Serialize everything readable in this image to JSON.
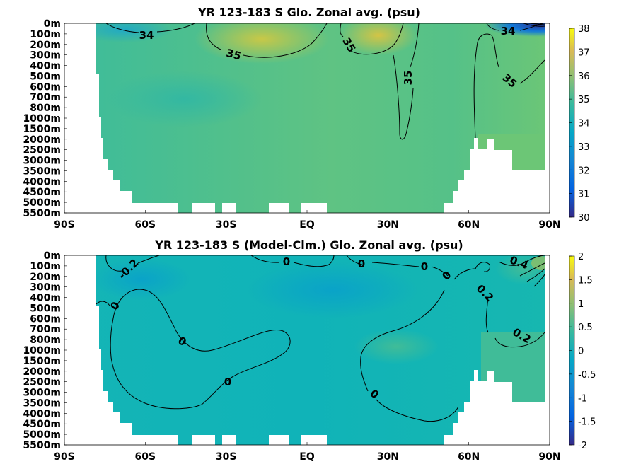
{
  "chart_data": [
    {
      "type": "heatmap",
      "title": "YR 123-183 S Glo. Zonal avg. (psu)",
      "x_ticks": [
        "90S",
        "60S",
        "30S",
        "EQ",
        "30N",
        "60N",
        "90N"
      ],
      "x_values": [
        -90,
        -60,
        -30,
        0,
        30,
        60,
        90
      ],
      "y_ticks": [
        "0m",
        "100m",
        "200m",
        "300m",
        "400m",
        "500m",
        "600m",
        "700m",
        "800m",
        "1000m",
        "1500m",
        "2000m",
        "2500m",
        "3000m",
        "3500m",
        "4000m",
        "4500m",
        "5000m",
        "5500m"
      ],
      "colorbar": {
        "min": 30,
        "max": 38,
        "ticks": [
          "30",
          "31",
          "32",
          "33",
          "34",
          "35",
          "36",
          "37",
          "38"
        ]
      },
      "contour_labels": [
        "34",
        "35",
        "35",
        "35",
        "34",
        "35"
      ],
      "grid": false
    },
    {
      "type": "heatmap",
      "title": "YR 123-183 S (Model-Clm.) Glo. Zonal avg. (psu)",
      "x_ticks": [
        "90S",
        "60S",
        "30S",
        "EQ",
        "30N",
        "60N",
        "90N"
      ],
      "x_values": [
        -90,
        -60,
        -30,
        0,
        30,
        60,
        90
      ],
      "y_ticks": [
        "0m",
        "100m",
        "200m",
        "300m",
        "400m",
        "500m",
        "600m",
        "700m",
        "800m",
        "1000m",
        "1500m",
        "2000m",
        "2500m",
        "3000m",
        "3500m",
        "4000m",
        "4500m",
        "5000m",
        "5500m"
      ],
      "colorbar": {
        "min": -2,
        "max": 2,
        "ticks": [
          "2",
          "1.5",
          "1",
          "0.5",
          "0",
          "-0.5",
          "-1",
          "-1.5",
          "-2"
        ]
      },
      "contour_labels": [
        "-0.2",
        "0",
        "0",
        "0",
        "0",
        "0",
        "0",
        "0",
        "0",
        "0.2",
        "0.2",
        "0.4"
      ],
      "grid": false
    }
  ],
  "colors": {
    "parula_dark": "#352a87",
    "parula_blue": "#0f7fdd",
    "parula_teal": "#19b6b2",
    "parula_green": "#7dc962",
    "parula_yellow": "#f9fb0e",
    "mask": "#ffffff"
  }
}
